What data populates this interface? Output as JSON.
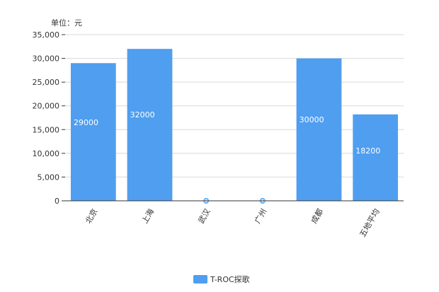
{
  "chart_data": {
    "type": "bar",
    "unit_label": "单位：元",
    "categories": [
      "北京",
      "上海",
      "武汉",
      "广州",
      "成都",
      "五地平均"
    ],
    "series": [
      {
        "name": "T-ROC探歌",
        "values": [
          29000,
          32000,
          0,
          0,
          30000,
          18200
        ]
      }
    ],
    "yticks": [
      "0",
      "5,000",
      "10,000",
      "15,000",
      "20,000",
      "25,000",
      "30,000",
      "35,000"
    ],
    "ylim": [
      0,
      35000
    ],
    "grid": true,
    "legend_position": "bottom-center",
    "colors": {
      "bar": "#4f9ef0",
      "grid": "#d9d9d9",
      "axis": "#333333"
    }
  }
}
